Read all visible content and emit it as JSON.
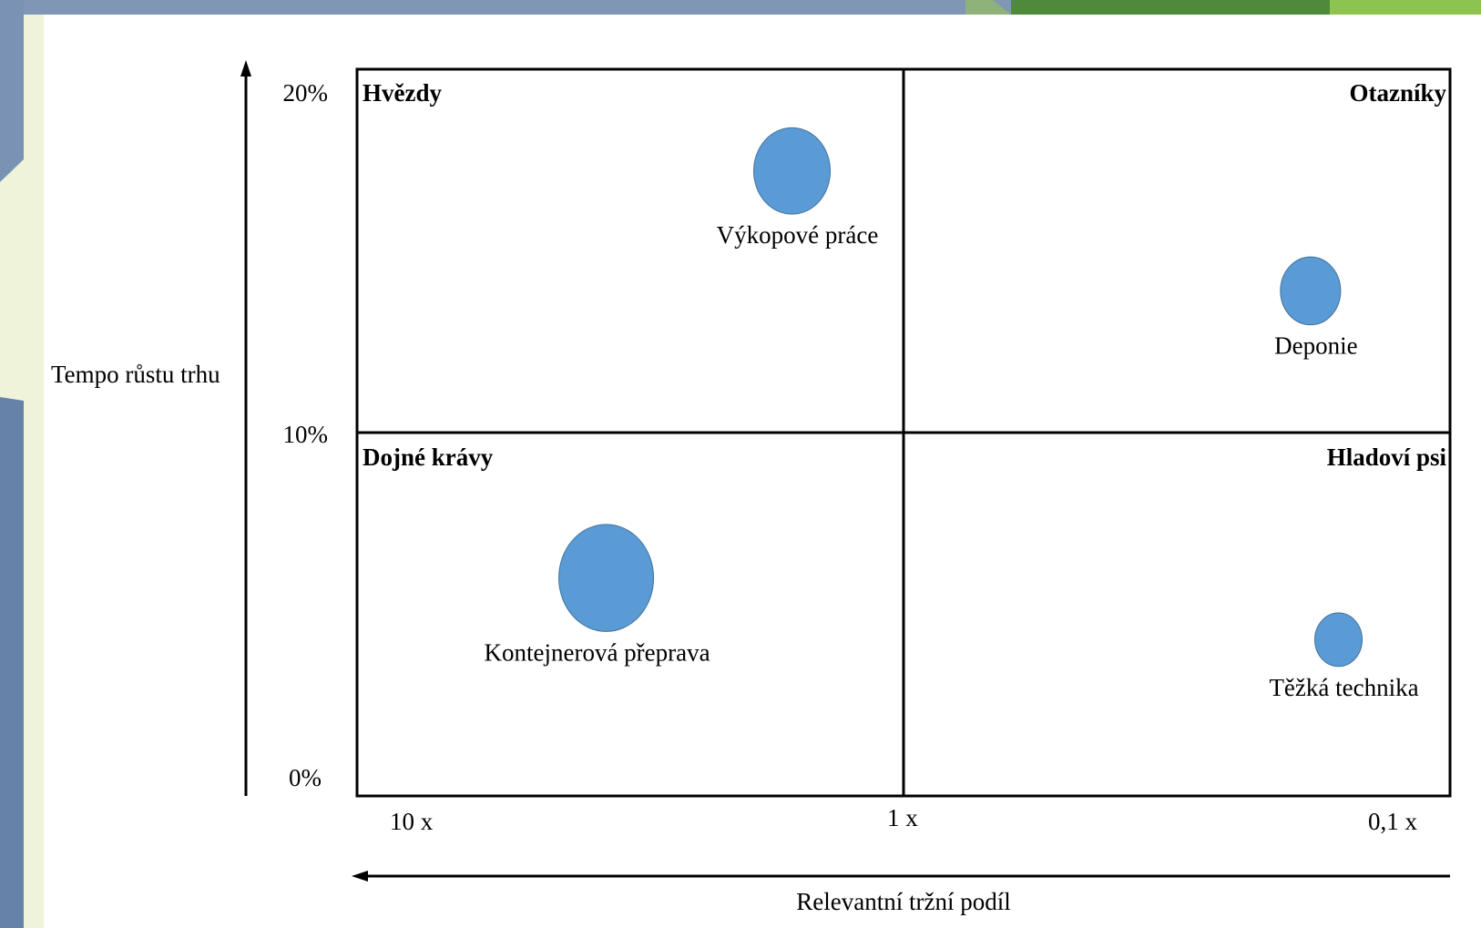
{
  "chart_data": {
    "type": "scatter",
    "title": "",
    "xlabel": "Relevantní tržní podíl",
    "ylabel": "Tempo růstu trhu",
    "x_scale": "log",
    "x_reversed": true,
    "xlim": [
      10,
      0.1
    ],
    "ylim": [
      0,
      20
    ],
    "y_unit": "%",
    "x_ticks": [
      "10 x",
      "1 x",
      "0,1 x"
    ],
    "y_ticks": [
      "0%",
      "10%",
      "20%"
    ],
    "quadrants": [
      "Hvězdy",
      "Otazníky",
      "Dojné krávy",
      "Hladoví psi"
    ],
    "points": [
      {
        "label": "Výkopové práce",
        "x": 1.6,
        "y": 17.2,
        "size": 42
      },
      {
        "label": "Deponie",
        "x": 0.18,
        "y": 13.9,
        "size": 33
      },
      {
        "label": "Kontejnerová přeprava",
        "x": 3.5,
        "y": 6.0,
        "size": 52
      },
      {
        "label": "Těžká technika",
        "x": 0.16,
        "y": 4.3,
        "size": 26
      }
    ],
    "bubble_color": "#5B9BD5",
    "grid": false
  }
}
